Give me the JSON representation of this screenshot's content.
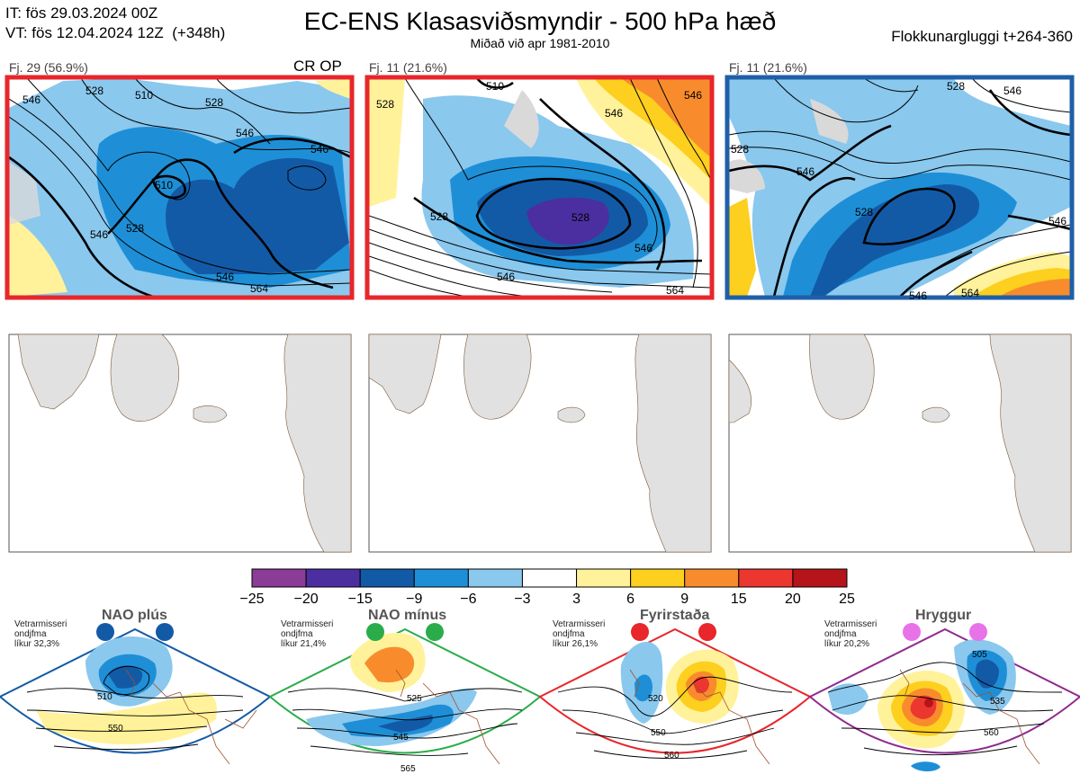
{
  "header": {
    "it_line": "IT: fös 29.03.2024 00Z",
    "vt_line": "VT: fös 12.04.2024 12Z  (+348h)",
    "title": "EC-ENS Klasasviðsmyndir - 500 hPa hæð",
    "subtitle": "Miðað við apr 1981-2010",
    "window": "Flokkunargluggi t+264-360"
  },
  "panels": [
    {
      "label": "Fj. 29 (56.9%)",
      "tag": "CR OP",
      "frame_color": "#e8262b",
      "contour_labels": [
        "546",
        "528",
        "510",
        "528",
        "546",
        "546",
        "528",
        "510",
        "546",
        "546",
        "564"
      ]
    },
    {
      "label": "Fj. 11 (21.6%)",
      "tag": "",
      "frame_color": "#e8262b",
      "contour_labels": [
        "528",
        "510",
        "546",
        "528",
        "546",
        "546",
        "528",
        "546",
        "564"
      ]
    },
    {
      "label": "Fj. 11 (21.6%)",
      "tag": "",
      "frame_color": "#1f5fa8",
      "contour_labels": [
        "528",
        "528",
        "546",
        "546",
        "528",
        "546",
        "546",
        "564"
      ]
    }
  ],
  "colorbar": {
    "ticks": [
      "−25",
      "−20",
      "−15",
      "−9",
      "−6",
      "−3",
      "3",
      "6",
      "9",
      "15",
      "20",
      "25"
    ],
    "colors": [
      "#8a3c96",
      "#4b2fa0",
      "#135aa6",
      "#1e8fd6",
      "#8ac8ee",
      "#ffffff",
      "#fff29a",
      "#fdcf1e",
      "#f88c2c",
      "#ec3630",
      "#b5141a"
    ]
  },
  "regimes": [
    {
      "name": "NAO plús",
      "note": "Vetrarmisseri\nondjfma\nlíkur 32,3%",
      "color": "#135aa6",
      "contours": [
        "510",
        "550"
      ]
    },
    {
      "name": "NAO mínus",
      "note": "Vetrarmisseri\nondjfma\nlíkur 21,4%",
      "color": "#2aac4a",
      "contours": [
        "525",
        "545",
        "565"
      ]
    },
    {
      "name": "Fyrirstaða",
      "note": "Vetrarmisseri\nondjfma\nlíkur 26,1%",
      "color": "#e8262b",
      "contours": [
        "520",
        "550",
        "560"
      ]
    },
    {
      "name": "Hryggur",
      "note": "Vetrarmisseri\nondjfma\nlíkur 20,2%",
      "color": "#8e2a8e",
      "contours": [
        "505",
        "535",
        "560"
      ]
    }
  ]
}
